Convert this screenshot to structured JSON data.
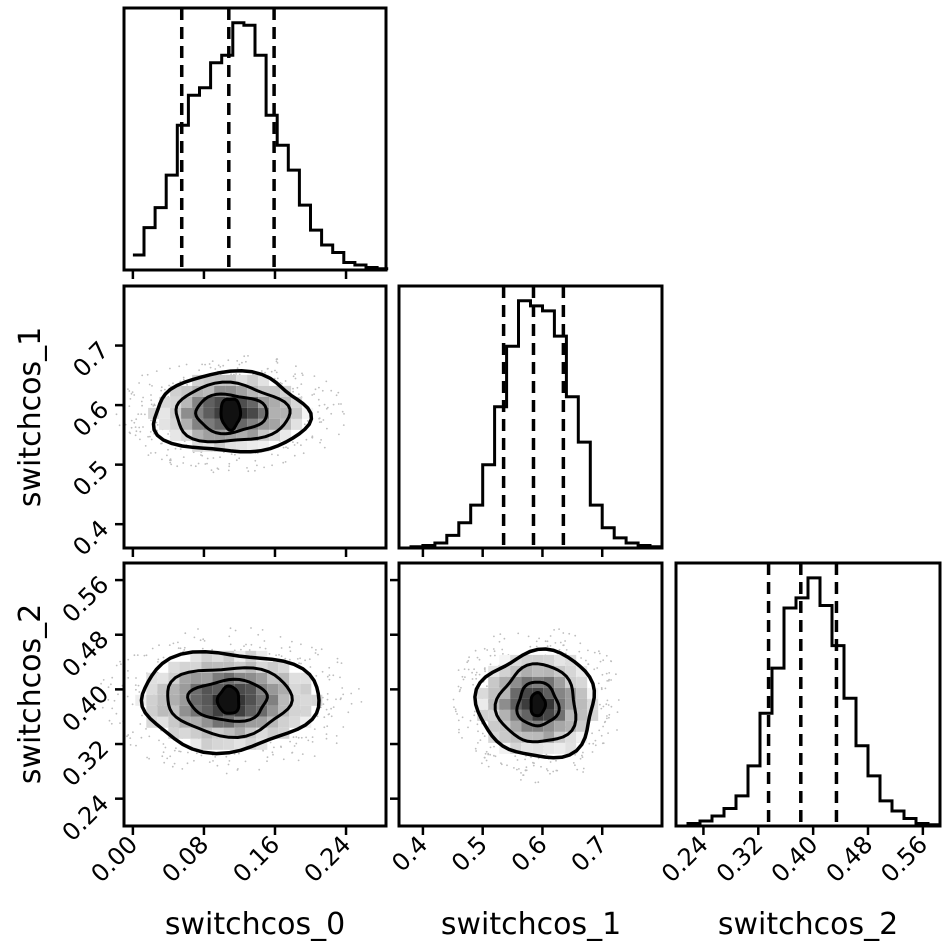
{
  "chart_data": {
    "type": "corner",
    "parameters": [
      "switchcos_0",
      "switchcos_1",
      "switchcos_2"
    ],
    "axes": {
      "switchcos_0": {
        "range": [
          -0.01,
          0.285
        ],
        "ticks": [
          0.0,
          0.08,
          0.16,
          0.24
        ],
        "tick_labels": [
          "0.00",
          "0.08",
          "0.16",
          "0.24"
        ]
      },
      "switchcos_1": {
        "range": [
          0.36,
          0.8
        ],
        "ticks": [
          0.4,
          0.5,
          0.6,
          0.7
        ],
        "tick_labels": [
          "0.4",
          "0.5",
          "0.6",
          "0.7"
        ]
      },
      "switchcos_2": {
        "range": [
          0.2,
          0.585
        ],
        "ticks": [
          0.24,
          0.32,
          0.4,
          0.48,
          0.56
        ],
        "tick_labels": [
          "0.24",
          "0.32",
          "0.40",
          "0.48",
          "0.56"
        ]
      }
    },
    "histograms": [
      {
        "param": "switchcos_0",
        "quantiles": [
          0.055,
          0.108,
          0.159
        ],
        "bin_edges": [
          0.0,
          0.0125,
          0.025,
          0.0375,
          0.05,
          0.0625,
          0.075,
          0.0875,
          0.1,
          0.1125,
          0.125,
          0.1375,
          0.15,
          0.1625,
          0.175,
          0.1875,
          0.2,
          0.2125,
          0.225,
          0.2375,
          0.25,
          0.2625,
          0.275,
          0.2875
        ],
        "counts": [
          0.06,
          0.17,
          0.25,
          0.38,
          0.58,
          0.7,
          0.73,
          0.83,
          0.86,
          0.99,
          0.98,
          0.86,
          0.62,
          0.5,
          0.4,
          0.26,
          0.16,
          0.1,
          0.07,
          0.03,
          0.02,
          0.01,
          0.005
        ]
      },
      {
        "param": "switchcos_1",
        "quantiles": [
          0.535,
          0.585,
          0.635
        ],
        "bin_edges": [
          0.36,
          0.38,
          0.4,
          0.42,
          0.44,
          0.46,
          0.48,
          0.5,
          0.52,
          0.54,
          0.56,
          0.58,
          0.6,
          0.62,
          0.64,
          0.66,
          0.68,
          0.7,
          0.72,
          0.74,
          0.76,
          0.78,
          0.8
        ],
        "counts": [
          0.0,
          0.005,
          0.01,
          0.02,
          0.05,
          0.1,
          0.17,
          0.33,
          0.56,
          0.8,
          0.98,
          0.96,
          0.94,
          0.84,
          0.6,
          0.42,
          0.17,
          0.08,
          0.04,
          0.02,
          0.01,
          0.005
        ]
      },
      {
        "param": "switchcos_2",
        "quantiles": [
          0.335,
          0.382,
          0.434
        ],
        "bin_edges": [
          0.2,
          0.2175,
          0.235,
          0.2525,
          0.27,
          0.2875,
          0.305,
          0.3225,
          0.34,
          0.3575,
          0.375,
          0.3925,
          0.41,
          0.4275,
          0.445,
          0.4625,
          0.48,
          0.4975,
          0.515,
          0.5325,
          0.55,
          0.5675,
          0.585
        ],
        "counts": [
          0.0,
          0.01,
          0.02,
          0.04,
          0.07,
          0.12,
          0.24,
          0.45,
          0.63,
          0.87,
          0.91,
          0.99,
          0.88,
          0.72,
          0.51,
          0.32,
          0.2,
          0.1,
          0.06,
          0.03,
          0.01,
          0.005
        ]
      }
    ],
    "contours_2d": [
      {
        "x": "switchcos_0",
        "y": "switchcos_1",
        "center": [
          0.11,
          0.586
        ],
        "levels": [
          {
            "label": "outer",
            "rx": 0.087,
            "ry": 0.067
          },
          {
            "label": "middle",
            "rx": 0.064,
            "ry": 0.049
          },
          {
            "label": "inner",
            "rx": 0.04,
            "ry": 0.032
          },
          {
            "label": "core",
            "rx": 0.011,
            "ry": 0.026
          }
        ]
      },
      {
        "x": "switchcos_0",
        "y": "switchcos_2",
        "center": [
          0.108,
          0.384
        ],
        "levels": [
          {
            "label": "outer",
            "rx": 0.1,
            "ry": 0.072
          },
          {
            "label": "middle",
            "rx": 0.07,
            "ry": 0.05
          },
          {
            "label": "inner",
            "rx": 0.044,
            "ry": 0.03
          },
          {
            "label": "core",
            "rx": 0.012,
            "ry": 0.02
          }
        ]
      },
      {
        "x": "switchcos_1",
        "y": "switchcos_2",
        "center": [
          0.592,
          0.378
        ],
        "levels": [
          {
            "label": "outer",
            "rx": 0.098,
            "ry": 0.078
          },
          {
            "label": "middle",
            "rx": 0.066,
            "ry": 0.057
          },
          {
            "label": "inner",
            "rx": 0.034,
            "ry": 0.032
          },
          {
            "label": "core",
            "rx": 0.012,
            "ry": 0.017
          }
        ]
      }
    ],
    "grid": false,
    "legend": "none"
  }
}
